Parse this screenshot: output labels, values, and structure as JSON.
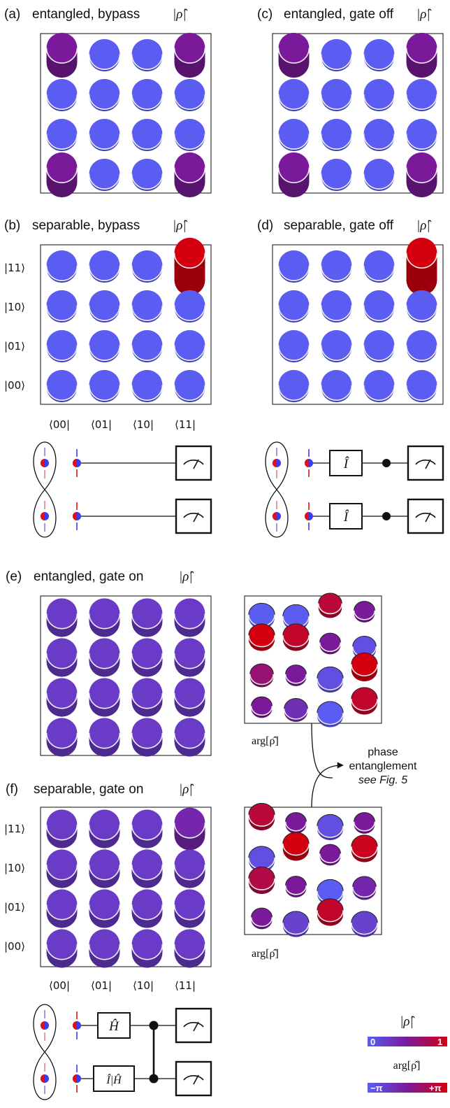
{
  "colors": {
    "low": "#5a5cf2",
    "mid": "#7a1a9a",
    "high": "#d4000f"
  },
  "panels": [
    {
      "id": "a",
      "letter": "(a)",
      "title": "entangled, bypass",
      "symbol": "|ρ̂|",
      "heights": [
        [
          0.5,
          0,
          0,
          0.5
        ],
        [
          0,
          0,
          0,
          0
        ],
        [
          0,
          0,
          0,
          0
        ],
        [
          0.5,
          0,
          0,
          0.5
        ]
      ]
    },
    {
      "id": "b",
      "letter": "(b)",
      "title": "separable, bypass",
      "symbol": "|ρ̂|",
      "heights": [
        [
          0,
          0,
          0,
          1
        ],
        [
          0,
          0,
          0,
          0
        ],
        [
          0,
          0,
          0,
          0
        ],
        [
          0,
          0,
          0,
          0
        ]
      ]
    },
    {
      "id": "c",
      "letter": "(c)",
      "title": "entangled, gate off",
      "symbol": "|ρ̂|",
      "heights": [
        [
          0.5,
          0,
          0,
          0.5
        ],
        [
          0,
          0,
          0,
          0
        ],
        [
          0,
          0,
          0,
          0
        ],
        [
          0.5,
          0,
          0,
          0.5
        ]
      ]
    },
    {
      "id": "d",
      "letter": "(d)",
      "title": "separable, gate off",
      "symbol": "|ρ̂|",
      "heights": [
        [
          0,
          0,
          0,
          1
        ],
        [
          0,
          0,
          0,
          0
        ],
        [
          0,
          0,
          0,
          0
        ],
        [
          0,
          0,
          0,
          0
        ]
      ]
    },
    {
      "id": "e",
      "letter": "(e)",
      "title": "entangled, gate on",
      "symbol": "|ρ̂|",
      "heights": [
        [
          0.25,
          0.25,
          0.25,
          0.25
        ],
        [
          0.25,
          0.25,
          0.25,
          0.25
        ],
        [
          0.25,
          0.25,
          0.25,
          0.25
        ],
        [
          0.25,
          0.25,
          0.25,
          0.25
        ]
      ]
    },
    {
      "id": "f",
      "letter": "(f)",
      "title": "separable, gate on",
      "symbol": "|ρ̂|",
      "heights": [
        [
          0.25,
          0.25,
          0.25,
          0.4
        ],
        [
          0.25,
          0.25,
          0.25,
          0.25
        ],
        [
          0.25,
          0.25,
          0.25,
          0.25
        ],
        [
          0.25,
          0.25,
          0.25,
          0.25
        ]
      ]
    }
  ],
  "row_labels": [
    "|11⟩",
    "|10⟩",
    "|01⟩",
    "|00⟩"
  ],
  "col_labels": [
    "⟨00|",
    "⟨01|",
    "⟨10|",
    "⟨11|"
  ],
  "phase_panels": [
    {
      "id": "e",
      "label": "arg[ρ̂]"
    },
    {
      "id": "f",
      "label": "arg[ρ̂]"
    }
  ],
  "annotation": {
    "line1": "phase",
    "line2": "entanglement",
    "line3": "see Fig. 5"
  },
  "circuit_d": {
    "gate1": "Î",
    "gate2": "Î"
  },
  "circuit_f": {
    "gate1": "Ĥ",
    "gate2": "Î|Ĥ"
  },
  "colorbars": {
    "abs": {
      "label": "|ρ̂|",
      "min": "0",
      "max": "1"
    },
    "arg": {
      "label": "arg[ρ̂]",
      "min": "−π",
      "max": "+π"
    }
  }
}
